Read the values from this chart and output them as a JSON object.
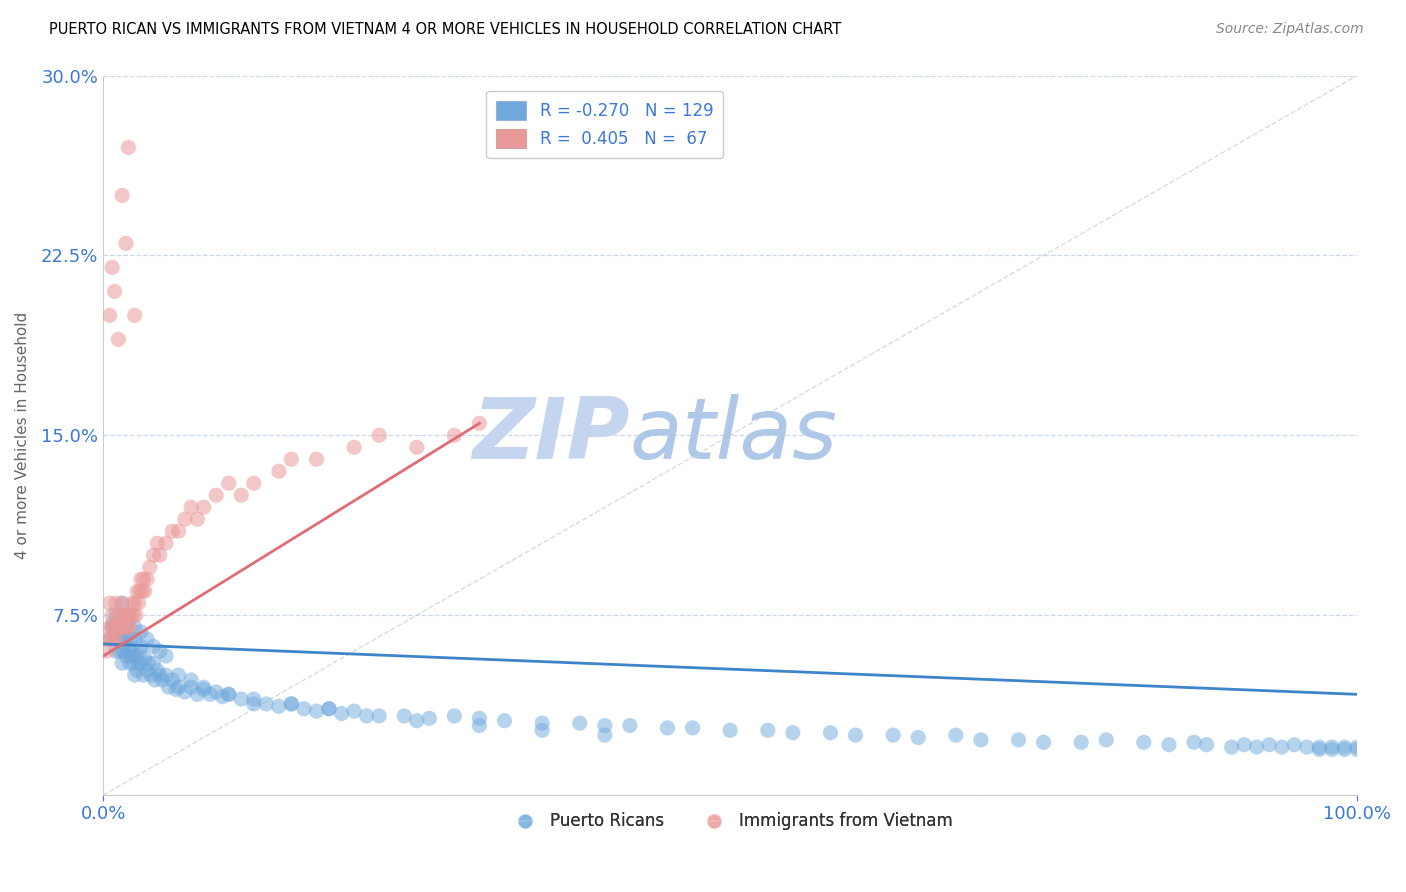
{
  "title": "PUERTO RICAN VS IMMIGRANTS FROM VIETNAM 4 OR MORE VEHICLES IN HOUSEHOLD CORRELATION CHART",
  "source": "Source: ZipAtlas.com",
  "ylabel": "4 or more Vehicles in Household",
  "xlabel": "",
  "xlim": [
    0.0,
    1.0
  ],
  "ylim": [
    0.0,
    0.3
  ],
  "yticks": [
    0.0,
    0.075,
    0.15,
    0.225,
    0.3
  ],
  "ytick_labels": [
    "",
    "7.5%",
    "15.0%",
    "22.5%",
    "30.0%"
  ],
  "xticks": [
    0.0,
    1.0
  ],
  "xtick_labels": [
    "0.0%",
    "100.0%"
  ],
  "legend_r1": "R = -0.270",
  "legend_n1": "N = 129",
  "legend_r2": "R =  0.405",
  "legend_n2": "N =  67",
  "blue_color": "#6fa8dc",
  "pink_color": "#ea9999",
  "blue_line_color": "#3d85c8",
  "pink_line_color": "#e06c75",
  "grid_color": "#c9d9f0",
  "watermark_zip_color": "#c5d5f0",
  "watermark_atlas_color": "#b0c8e8",
  "title_color": "#000000",
  "axis_color": "#3c78d8",
  "source_color": "#888888",
  "blue_scatter_x": [
    0.005,
    0.007,
    0.008,
    0.009,
    0.01,
    0.01,
    0.011,
    0.012,
    0.013,
    0.014,
    0.015,
    0.015,
    0.016,
    0.017,
    0.018,
    0.018,
    0.019,
    0.02,
    0.02,
    0.021,
    0.022,
    0.022,
    0.023,
    0.024,
    0.025,
    0.025,
    0.026,
    0.027,
    0.028,
    0.029,
    0.03,
    0.03,
    0.032,
    0.033,
    0.035,
    0.036,
    0.038,
    0.04,
    0.041,
    0.043,
    0.045,
    0.047,
    0.05,
    0.052,
    0.055,
    0.058,
    0.06,
    0.065,
    0.07,
    0.075,
    0.08,
    0.085,
    0.09,
    0.095,
    0.1,
    0.11,
    0.12,
    0.13,
    0.14,
    0.15,
    0.16,
    0.17,
    0.18,
    0.19,
    0.2,
    0.22,
    0.24,
    0.26,
    0.28,
    0.3,
    0.32,
    0.35,
    0.38,
    0.4,
    0.42,
    0.45,
    0.47,
    0.5,
    0.53,
    0.55,
    0.58,
    0.6,
    0.63,
    0.65,
    0.68,
    0.7,
    0.73,
    0.75,
    0.78,
    0.8,
    0.83,
    0.85,
    0.87,
    0.88,
    0.9,
    0.91,
    0.92,
    0.93,
    0.94,
    0.95,
    0.96,
    0.97,
    0.97,
    0.98,
    0.98,
    0.99,
    0.99,
    1.0,
    1.0,
    0.015,
    0.02,
    0.025,
    0.03,
    0.035,
    0.04,
    0.045,
    0.05,
    0.06,
    0.07,
    0.08,
    0.1,
    0.12,
    0.15,
    0.18,
    0.21,
    0.25,
    0.3,
    0.35,
    0.4
  ],
  "blue_scatter_y": [
    0.065,
    0.07,
    0.072,
    0.068,
    0.075,
    0.06,
    0.065,
    0.07,
    0.06,
    0.065,
    0.068,
    0.055,
    0.06,
    0.063,
    0.058,
    0.07,
    0.065,
    0.06,
    0.072,
    0.055,
    0.065,
    0.058,
    0.06,
    0.055,
    0.065,
    0.05,
    0.058,
    0.052,
    0.055,
    0.06,
    0.055,
    0.062,
    0.05,
    0.057,
    0.052,
    0.055,
    0.05,
    0.055,
    0.048,
    0.052,
    0.05,
    0.048,
    0.05,
    0.045,
    0.048,
    0.044,
    0.045,
    0.043,
    0.045,
    0.042,
    0.044,
    0.042,
    0.043,
    0.041,
    0.042,
    0.04,
    0.038,
    0.038,
    0.037,
    0.038,
    0.036,
    0.035,
    0.036,
    0.034,
    0.035,
    0.033,
    0.033,
    0.032,
    0.033,
    0.032,
    0.031,
    0.03,
    0.03,
    0.029,
    0.029,
    0.028,
    0.028,
    0.027,
    0.027,
    0.026,
    0.026,
    0.025,
    0.025,
    0.024,
    0.025,
    0.023,
    0.023,
    0.022,
    0.022,
    0.023,
    0.022,
    0.021,
    0.022,
    0.021,
    0.02,
    0.021,
    0.02,
    0.021,
    0.02,
    0.021,
    0.02,
    0.019,
    0.02,
    0.019,
    0.02,
    0.019,
    0.02,
    0.019,
    0.02,
    0.08,
    0.075,
    0.07,
    0.068,
    0.065,
    0.062,
    0.06,
    0.058,
    0.05,
    0.048,
    0.045,
    0.042,
    0.04,
    0.038,
    0.036,
    0.033,
    0.031,
    0.029,
    0.027,
    0.025
  ],
  "pink_scatter_x": [
    0.003,
    0.004,
    0.005,
    0.005,
    0.006,
    0.007,
    0.007,
    0.008,
    0.009,
    0.01,
    0.01,
    0.011,
    0.012,
    0.013,
    0.014,
    0.015,
    0.015,
    0.016,
    0.017,
    0.018,
    0.019,
    0.02,
    0.021,
    0.022,
    0.023,
    0.024,
    0.025,
    0.026,
    0.027,
    0.028,
    0.029,
    0.03,
    0.031,
    0.032,
    0.033,
    0.035,
    0.037,
    0.04,
    0.043,
    0.045,
    0.05,
    0.055,
    0.06,
    0.065,
    0.07,
    0.075,
    0.08,
    0.09,
    0.1,
    0.11,
    0.12,
    0.14,
    0.15,
    0.17,
    0.2,
    0.22,
    0.25,
    0.28,
    0.3,
    0.005,
    0.007,
    0.009,
    0.012,
    0.015,
    0.018,
    0.02,
    0.025
  ],
  "pink_scatter_y": [
    0.06,
    0.065,
    0.07,
    0.08,
    0.065,
    0.07,
    0.075,
    0.065,
    0.07,
    0.065,
    0.08,
    0.07,
    0.075,
    0.07,
    0.075,
    0.07,
    0.08,
    0.075,
    0.07,
    0.075,
    0.07,
    0.075,
    0.07,
    0.075,
    0.08,
    0.075,
    0.08,
    0.075,
    0.085,
    0.08,
    0.085,
    0.09,
    0.085,
    0.09,
    0.085,
    0.09,
    0.095,
    0.1,
    0.105,
    0.1,
    0.105,
    0.11,
    0.11,
    0.115,
    0.12,
    0.115,
    0.12,
    0.125,
    0.13,
    0.125,
    0.13,
    0.135,
    0.14,
    0.14,
    0.145,
    0.15,
    0.145,
    0.15,
    0.155,
    0.2,
    0.22,
    0.21,
    0.19,
    0.25,
    0.23,
    0.27,
    0.2
  ],
  "blue_trend_x": [
    0.0,
    1.0
  ],
  "blue_trend_y": [
    0.063,
    0.042
  ],
  "pink_trend_x": [
    0.0,
    0.3
  ],
  "pink_trend_y": [
    0.058,
    0.155
  ],
  "ref_line_x": [
    0.0,
    1.0
  ],
  "ref_line_y": [
    0.0,
    0.3
  ]
}
